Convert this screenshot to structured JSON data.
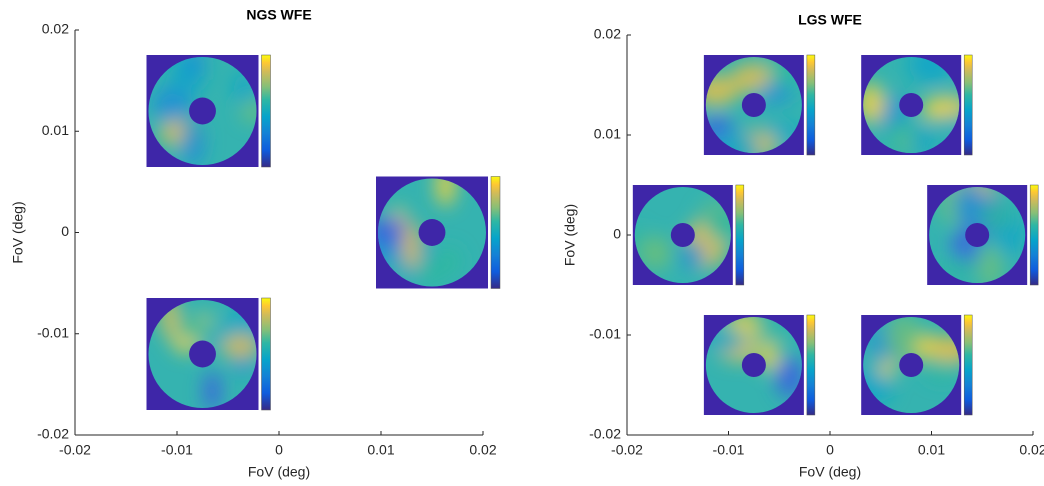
{
  "chart_data": [
    {
      "type": "scatter",
      "title": "NGS WFE",
      "xlabel": "FoV (deg)",
      "ylabel": "FoV (deg)",
      "x": [
        -0.0075,
        0.015,
        -0.0075
      ],
      "y": [
        0.012,
        0,
        -0.012
      ],
      "xlim": [
        -0.02,
        0.02
      ],
      "ylim": [
        -0.02,
        0.02
      ],
      "xticks": [
        -0.02,
        -0.01,
        0,
        0.01,
        0.02
      ],
      "yticks": [
        -0.02,
        -0.01,
        0,
        0.01,
        0.02
      ]
    },
    {
      "type": "scatter",
      "title": "LGS WFE",
      "xlabel": "FoV (deg)",
      "ylabel": "FoV (deg)",
      "x": [
        -0.0075,
        0.008,
        -0.0145,
        0.0145,
        -0.0075,
        0.008
      ],
      "y": [
        0.013,
        0.013,
        0,
        0,
        -0.013,
        -0.013
      ],
      "xlim": [
        -0.02,
        0.02
      ],
      "ylim": [
        -0.02,
        0.02
      ],
      "xticks": [
        -0.02,
        -0.01,
        0,
        0.01,
        0.02
      ],
      "yticks": [
        -0.02,
        -0.01,
        0,
        0.01,
        0.02
      ]
    }
  ]
}
